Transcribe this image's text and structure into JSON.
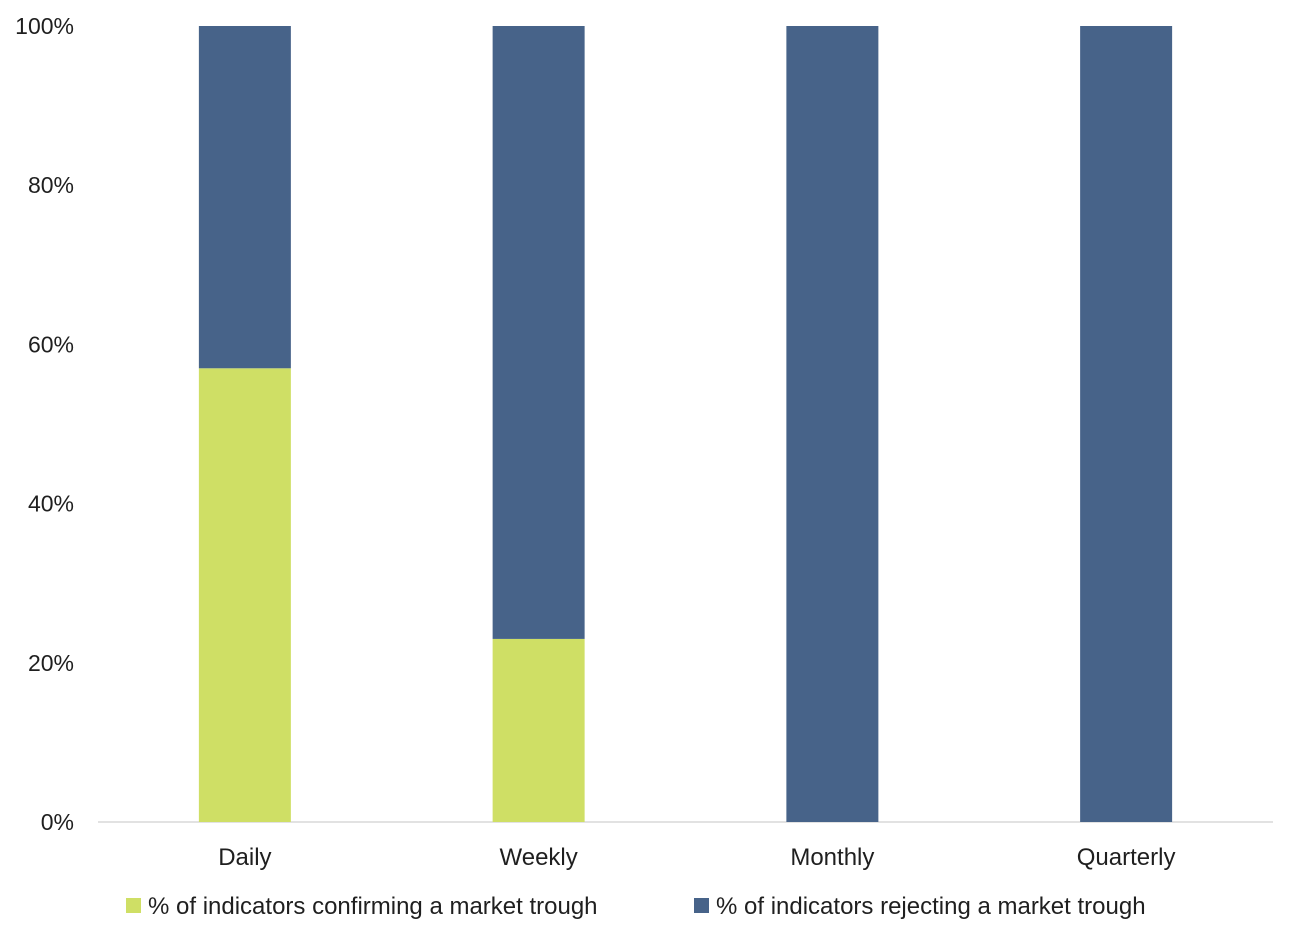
{
  "chart_data": {
    "type": "bar",
    "stacked": true,
    "categories": [
      "Daily",
      "Weekly",
      "Monthly",
      "Quarterly"
    ],
    "series": [
      {
        "name": "% of indicators confirming a market trough",
        "values": [
          57,
          23,
          0,
          0
        ],
        "color": "#cfdf65"
      },
      {
        "name": "% of indicators rejecting a market trough",
        "values": [
          43,
          77,
          100,
          100
        ],
        "color": "#476389"
      }
    ],
    "yticks": [
      "0%",
      "20%",
      "40%",
      "60%",
      "80%",
      "100%"
    ],
    "ylim": [
      0,
      100
    ],
    "grid": false,
    "legend_position": "bottom"
  }
}
